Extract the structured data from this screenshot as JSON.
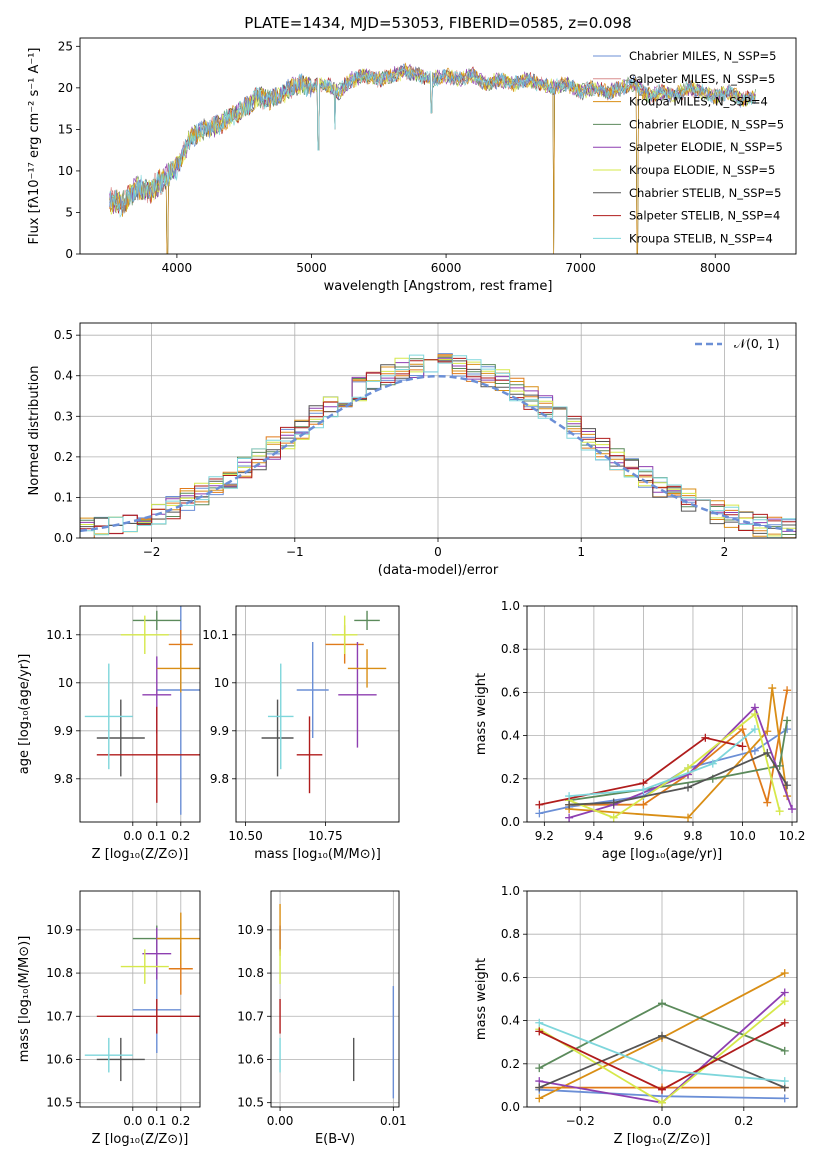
{
  "figure_title": "PLATE=1434, MJD=53053, FIBERID=0585, z=0.098",
  "colors": [
    "#6b8fd6",
    "#e07b1a",
    "#d98e15",
    "#5b8a5b",
    "#8e3fb1",
    "#d6e84a",
    "#555555",
    "#b01c1c",
    "#7ed6db"
  ],
  "chart_data": [
    {
      "id": "spectrum",
      "type": "line",
      "xlabel": "wavelength [Angstrom, rest frame]",
      "ylabel": "Flux [fλ10⁻¹⁷ erg cm⁻² s⁻¹ A⁻¹]",
      "xlim": [
        3280,
        8600
      ],
      "ylim": [
        0,
        26
      ],
      "xticks": [
        4000,
        5000,
        6000,
        7000,
        8000
      ],
      "yticks": [
        0,
        5,
        10,
        15,
        20,
        25
      ],
      "grid": false,
      "legend_position": "top-right",
      "legend": [
        "Chabrier MILES, N_SSP=5",
        "Salpeter MILES, N_SSP=5",
        "Kroupa MILES, N_SSP=4",
        "Chabrier ELODIE, N_SSP=5",
        "Salpeter ELODIE, N_SSP=5",
        "Kroupa ELODIE, N_SSP=5",
        "Chabrier STELIB, N_SSP=5",
        "Salpeter STELIB, N_SSP=4",
        "Kroupa STELIB, N_SSP=4"
      ],
      "series_legend_colors": [
        "#6b8fd6",
        "#d98e8e",
        "#d98e15",
        "#5b8a5b",
        "#8e3fb1",
        "#d6e84a",
        "#555555",
        "#b01c1c",
        "#7ed6db"
      ],
      "x": [
        3500,
        3600,
        3700,
        3800,
        3900,
        4000,
        4100,
        4200,
        4300,
        4400,
        4500,
        4600,
        4700,
        4800,
        4900,
        5000,
        5100,
        5200,
        5300,
        5400,
        5500,
        5600,
        5700,
        5800,
        5900,
        6000,
        6100,
        6200,
        6300,
        6400,
        6500,
        6600,
        6700,
        6800,
        6900,
        7000,
        7100,
        7200,
        7300,
        7400,
        7500,
        7600,
        7700,
        7800,
        7900,
        8000,
        8100,
        8200,
        8300
      ],
      "y": [
        6.5,
        6.0,
        8.0,
        7.5,
        9.0,
        10.5,
        14.0,
        15.0,
        15.5,
        16.5,
        17.5,
        19.0,
        18.5,
        19.5,
        20.5,
        20.0,
        20.5,
        19.5,
        21.0,
        21.5,
        21.0,
        21.5,
        22.0,
        21.5,
        21.0,
        21.5,
        21.0,
        21.5,
        20.5,
        21.0,
        20.5,
        21.0,
        20.5,
        20.0,
        20.5,
        19.5,
        20.0,
        19.5,
        20.0,
        20.5,
        19.0,
        19.5,
        19.0,
        20.0,
        19.5,
        19.0,
        19.5,
        18.5,
        19.0
      ],
      "dips": [
        {
          "x": 3930,
          "y": 0
        },
        {
          "x": 5050,
          "y": 12.5
        },
        {
          "x": 5175,
          "y": 15.0
        },
        {
          "x": 5890,
          "y": 17.0
        },
        {
          "x": 6800,
          "y": 0
        },
        {
          "x": 7420,
          "y": 0
        }
      ]
    },
    {
      "id": "residuals",
      "type": "bar",
      "xlabel": "(data-model)/error",
      "ylabel": "Normed distribution",
      "xlim": [
        -2.5,
        2.5
      ],
      "ylim": [
        0,
        0.53
      ],
      "xticks": [
        -2,
        -1,
        0,
        1,
        2
      ],
      "xtick_labels": [
        "−2",
        "−1",
        "0",
        "1",
        "2"
      ],
      "yticks": [
        0.0,
        0.1,
        0.2,
        0.3,
        0.4,
        0.5
      ],
      "grid": true,
      "legend_position": "top-right",
      "legend": [
        "𝒩(0, 1)"
      ],
      "bin_width": 0.1,
      "hist_series": 9
    },
    {
      "id": "age_vs_Z",
      "type": "scatter",
      "xlabel": "Z [log₁₀(Z/Z⊙)]",
      "ylabel": "age  [log₁₀(age/yr)]",
      "xlim": [
        -0.22,
        0.28
      ],
      "ylim": [
        9.71,
        10.16
      ],
      "xticks": [
        0.0,
        0.1,
        0.2
      ],
      "xtick_labels": [
        "0.0",
        "0.1",
        "0.2"
      ],
      "yticks": [
        9.8,
        9.9,
        10.0,
        10.1
      ],
      "grid": true,
      "points": [
        {
          "x": 0.2,
          "y": 9.985,
          "xerr": 0.1,
          "yerr": 0.26,
          "c": 0
        },
        {
          "x": 0.2,
          "y": 10.08,
          "xerr": 0.05,
          "yerr": 0.03,
          "c": 1
        },
        {
          "x": 0.1,
          "y": 10.13,
          "xerr": 0.1,
          "yerr": 0.02,
          "c": 3
        },
        {
          "x": 0.1,
          "y": 9.975,
          "xerr": 0.06,
          "yerr": 0.08,
          "c": 4
        },
        {
          "x": 0.05,
          "y": 10.1,
          "xerr": 0.1,
          "yerr": 0.04,
          "c": 5
        },
        {
          "x": -0.05,
          "y": 9.885,
          "xerr": 0.1,
          "yerr": 0.08,
          "c": 6
        },
        {
          "x": 0.1,
          "y": 9.85,
          "xerr": 0.25,
          "yerr": 0.1,
          "c": 7
        },
        {
          "x": -0.1,
          "y": 9.93,
          "xerr": 0.1,
          "yerr": 0.11,
          "c": 8
        },
        {
          "x": 0.2,
          "y": 10.03,
          "xerr": 0.1,
          "yerr": 0.05,
          "c": 2
        }
      ]
    },
    {
      "id": "age_vs_mass",
      "type": "scatter",
      "xlabel": "mass [log₁₀(M/M⊙)]",
      "ylabel": "",
      "xlim": [
        10.47,
        10.98
      ],
      "ylim": [
        9.71,
        10.16
      ],
      "xticks": [
        10.5,
        10.75
      ],
      "xtick_labels": [
        "10.50",
        "10.75"
      ],
      "yticks": [
        9.8,
        9.9,
        10.0,
        10.1
      ],
      "grid": true,
      "points": [
        {
          "x": 10.71,
          "y": 9.985,
          "xerr": 0.05,
          "yerr": 0.1,
          "c": 0
        },
        {
          "x": 10.81,
          "y": 10.08,
          "xerr": 0.06,
          "yerr": 0.04,
          "c": 1
        },
        {
          "x": 10.88,
          "y": 10.13,
          "xerr": 0.04,
          "yerr": 0.02,
          "c": 3
        },
        {
          "x": 10.85,
          "y": 9.975,
          "xerr": 0.06,
          "yerr": 0.11,
          "c": 4
        },
        {
          "x": 10.81,
          "y": 10.1,
          "xerr": 0.04,
          "yerr": 0.04,
          "c": 5
        },
        {
          "x": 10.6,
          "y": 9.885,
          "xerr": 0.05,
          "yerr": 0.08,
          "c": 6
        },
        {
          "x": 10.7,
          "y": 9.85,
          "xerr": 0.04,
          "yerr": 0.08,
          "c": 7
        },
        {
          "x": 10.61,
          "y": 9.93,
          "xerr": 0.04,
          "yerr": 0.11,
          "c": 8
        },
        {
          "x": 10.88,
          "y": 10.03,
          "xerr": 0.06,
          "yerr": 0.04,
          "c": 2
        }
      ]
    },
    {
      "id": "weight_vs_age",
      "type": "line",
      "xlabel": "age  [log₁₀(age/yr)]",
      "ylabel": "mass weight",
      "xlim": [
        9.13,
        10.22
      ],
      "ylim": [
        0,
        1.0
      ],
      "xticks": [
        9.2,
        9.4,
        9.6,
        9.8,
        10.0,
        10.2
      ],
      "xtick_labels": [
        "9.2",
        "9.4",
        "9.6",
        "9.8",
        "10.0",
        "10.2"
      ],
      "yticks": [
        0.0,
        0.2,
        0.4,
        0.6,
        0.8,
        1.0
      ],
      "grid": true,
      "series": [
        {
          "c": 0,
          "x": [
            9.18,
            9.3,
            9.6,
            9.78,
            10.05,
            10.18
          ],
          "y": [
            0.04,
            0.07,
            0.12,
            0.25,
            0.33,
            0.43
          ]
        },
        {
          "c": 1,
          "x": [
            9.3,
            9.6,
            9.78,
            10.0,
            10.1,
            10.18
          ],
          "y": [
            0.08,
            0.08,
            0.22,
            0.43,
            0.09,
            0.61
          ]
        },
        {
          "c": 2,
          "x": [
            9.3,
            9.78,
            10.1,
            10.12,
            10.18
          ],
          "y": [
            0.06,
            0.02,
            0.42,
            0.62,
            0.12
          ]
        },
        {
          "c": 3,
          "x": [
            9.3,
            9.6,
            9.88,
            10.15,
            10.18
          ],
          "y": [
            0.1,
            0.15,
            0.2,
            0.26,
            0.47
          ]
        },
        {
          "c": 4,
          "x": [
            9.3,
            9.48,
            9.78,
            10.05,
            10.2
          ],
          "y": [
            0.02,
            0.08,
            0.22,
            0.53,
            0.06
          ]
        },
        {
          "c": 5,
          "x": [
            9.3,
            9.48,
            9.78,
            10.05,
            10.15
          ],
          "y": [
            0.1,
            0.02,
            0.25,
            0.5,
            0.05
          ]
        },
        {
          "c": 6,
          "x": [
            9.3,
            9.48,
            9.78,
            10.1,
            10.18
          ],
          "y": [
            0.08,
            0.09,
            0.16,
            0.32,
            0.17
          ]
        },
        {
          "c": 7,
          "x": [
            9.18,
            9.6,
            9.85,
            10.0
          ],
          "y": [
            0.08,
            0.18,
            0.39,
            0.35
          ]
        },
        {
          "c": 8,
          "x": [
            9.3,
            9.6,
            9.88,
            10.05
          ],
          "y": [
            0.12,
            0.15,
            0.27,
            0.43
          ]
        }
      ]
    },
    {
      "id": "mass_vs_Z",
      "type": "scatter",
      "xlabel": "Z [log₁₀(Z/Z⊙)]",
      "ylabel": "mass [log₁₀(M/M⊙)]",
      "xlim": [
        -0.22,
        0.28
      ],
      "ylim": [
        10.49,
        10.99
      ],
      "xticks": [
        0.0,
        0.1,
        0.2
      ],
      "xtick_labels": [
        "0.0",
        "0.1",
        "0.2"
      ],
      "yticks": [
        10.5,
        10.6,
        10.7,
        10.8,
        10.9
      ],
      "grid": true,
      "points": [
        {
          "x": 0.1,
          "y": 10.715,
          "xerr": 0.1,
          "yerr": 0.1,
          "c": 0
        },
        {
          "x": 0.2,
          "y": 10.81,
          "xerr": 0.05,
          "yerr": 0.06,
          "c": 1
        },
        {
          "x": 0.1,
          "y": 10.88,
          "xerr": 0.1,
          "yerr": 0.03,
          "c": 3
        },
        {
          "x": 0.1,
          "y": 10.845,
          "xerr": 0.06,
          "yerr": 0.06,
          "c": 4
        },
        {
          "x": 0.05,
          "y": 10.815,
          "xerr": 0.1,
          "yerr": 0.04,
          "c": 5
        },
        {
          "x": -0.05,
          "y": 10.6,
          "xerr": 0.1,
          "yerr": 0.05,
          "c": 6
        },
        {
          "x": 0.1,
          "y": 10.7,
          "xerr": 0.25,
          "yerr": 0.04,
          "c": 7
        },
        {
          "x": -0.1,
          "y": 10.61,
          "xerr": 0.1,
          "yerr": 0.04,
          "c": 8
        },
        {
          "x": 0.2,
          "y": 10.88,
          "xerr": 0.1,
          "yerr": 0.06,
          "c": 2
        }
      ]
    },
    {
      "id": "mass_vs_ebv",
      "type": "scatter",
      "xlabel": "E(B-V)",
      "ylabel": "",
      "xlim": [
        -0.0008,
        0.0105
      ],
      "ylim": [
        10.49,
        10.99
      ],
      "xticks": [
        0.0,
        0.01
      ],
      "xtick_labels": [
        "0.00",
        "0.01"
      ],
      "yticks": [
        10.5,
        10.6,
        10.7,
        10.8,
        10.9
      ],
      "grid": true,
      "points": [
        {
          "x": 0.0,
          "y": 10.88,
          "xerr": 0,
          "yerr": 0.03,
          "c": 4
        },
        {
          "x": 0.0,
          "y": 10.9,
          "xerr": 0,
          "yerr": 0.06,
          "c": 2
        },
        {
          "x": 0.0,
          "y": 10.815,
          "xerr": 0,
          "yerr": 0.04,
          "c": 5
        },
        {
          "x": 0.0,
          "y": 10.7,
          "xerr": 0,
          "yerr": 0.04,
          "c": 7
        },
        {
          "x": 0.0,
          "y": 10.61,
          "xerr": 0,
          "yerr": 0.04,
          "c": 8
        },
        {
          "x": 0.0065,
          "y": 10.6,
          "xerr": 0,
          "yerr": 0.05,
          "c": 6
        },
        {
          "x": 0.01,
          "y": 10.64,
          "xerr": 0,
          "yerr": 0.13,
          "c": 0
        }
      ]
    },
    {
      "id": "weight_vs_Z",
      "type": "line",
      "xlabel": "Z [log₁₀(Z/Z⊙)]",
      "ylabel": "mass weight",
      "xlim": [
        -0.33,
        0.33
      ],
      "ylim": [
        0,
        1.0
      ],
      "xticks": [
        -0.2,
        0.0,
        0.2
      ],
      "xtick_labels": [
        "−0.2",
        "0.0",
        "0.2"
      ],
      "yticks": [
        0.0,
        0.2,
        0.4,
        0.6,
        0.8,
        1.0
      ],
      "grid": true,
      "series": [
        {
          "c": 0,
          "x": [
            -0.3,
            0.0,
            0.3
          ],
          "y": [
            0.08,
            0.05,
            0.04
          ]
        },
        {
          "c": 1,
          "x": [
            -0.3,
            0.0,
            0.3
          ],
          "y": [
            0.09,
            0.09,
            0.09
          ]
        },
        {
          "c": 2,
          "x": [
            -0.3,
            0.0,
            0.3
          ],
          "y": [
            0.04,
            0.32,
            0.62
          ]
        },
        {
          "c": 3,
          "x": [
            -0.3,
            0.0,
            0.3
          ],
          "y": [
            0.18,
            0.48,
            0.26
          ]
        },
        {
          "c": 4,
          "x": [
            -0.3,
            0.0,
            0.3
          ],
          "y": [
            0.12,
            0.02,
            0.53
          ]
        },
        {
          "c": 5,
          "x": [
            -0.3,
            0.0,
            0.3
          ],
          "y": [
            0.36,
            0.02,
            0.49
          ]
        },
        {
          "c": 6,
          "x": [
            -0.3,
            0.0,
            0.3
          ],
          "y": [
            0.09,
            0.33,
            0.09
          ]
        },
        {
          "c": 7,
          "x": [
            -0.3,
            0.0,
            0.3
          ],
          "y": [
            0.35,
            0.08,
            0.39
          ]
        },
        {
          "c": 8,
          "x": [
            -0.3,
            0.0,
            0.3
          ],
          "y": [
            0.39,
            0.17,
            0.12
          ]
        }
      ]
    }
  ]
}
